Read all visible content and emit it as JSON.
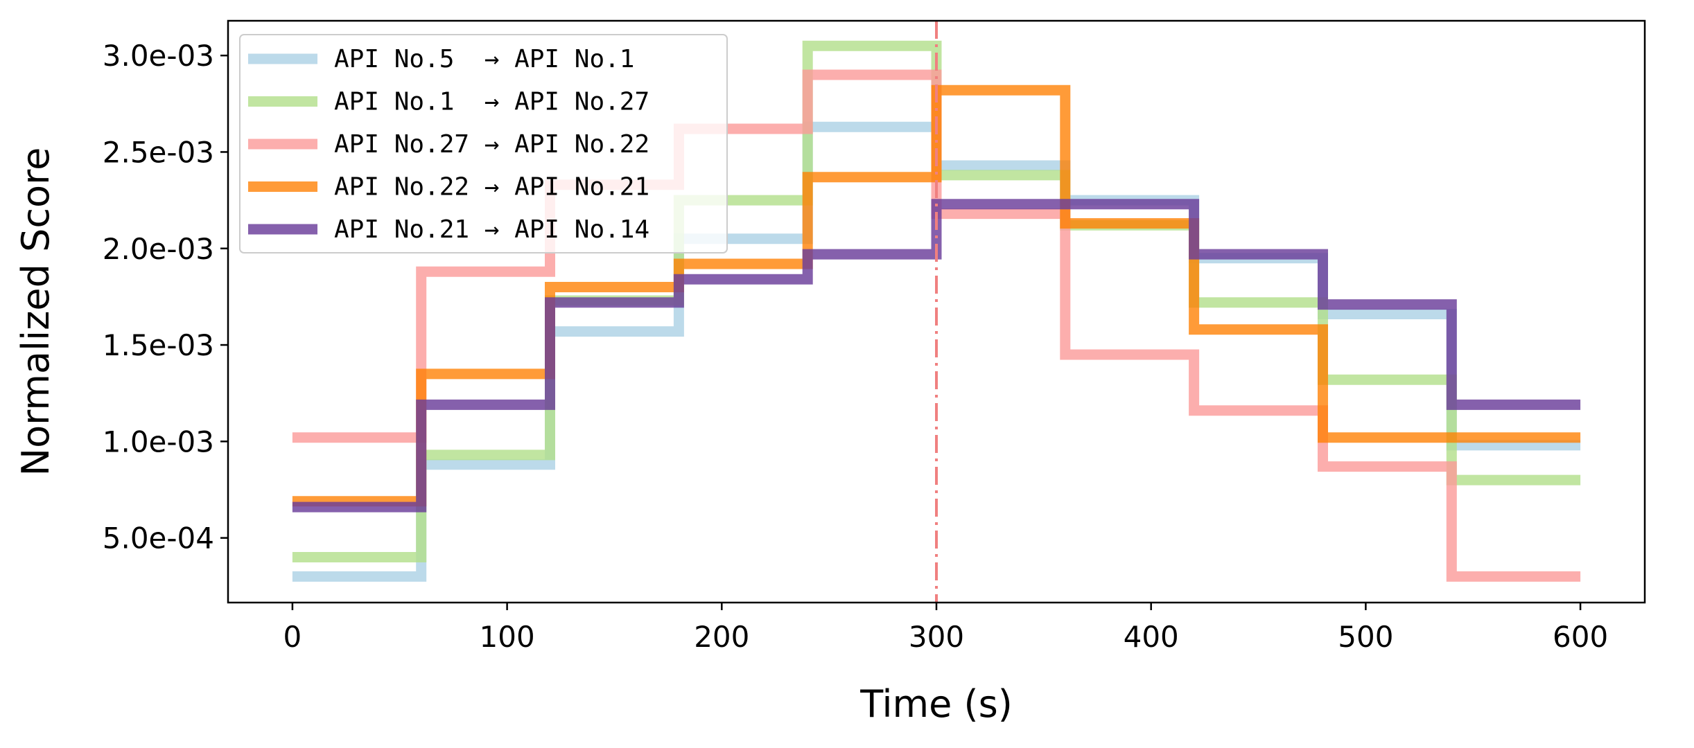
{
  "chart_data": {
    "type": "line",
    "step": "post",
    "title": "",
    "xlabel": "Time (s)",
    "ylabel": "Normalized Score",
    "xlim": [
      -30,
      630
    ],
    "ylim": [
      0.000165,
      0.00318
    ],
    "xticks": [
      0,
      100,
      200,
      300,
      400,
      500,
      600
    ],
    "xtick_labels": [
      "0",
      "100",
      "200",
      "300",
      "400",
      "500",
      "600"
    ],
    "yticks": [
      0.0005,
      0.001,
      0.0015,
      0.002,
      0.0025,
      0.003
    ],
    "ytick_labels": [
      "5.0e-04",
      "1.0e-03",
      "1.5e-03",
      "2.0e-03",
      "2.5e-03",
      "3.0e-03"
    ],
    "grid": false,
    "legend_position": "upper left",
    "x": [
      0,
      60,
      120,
      180,
      240,
      300,
      360,
      420,
      480,
      540,
      600
    ],
    "series": [
      {
        "name": "API No.5  → API No.1",
        "color": "#a6cee3",
        "opacity": 0.75,
        "values": [
          0.0003,
          0.00088,
          0.00157,
          0.00205,
          0.00263,
          0.00243,
          0.00225,
          0.00195,
          0.00166,
          0.00098,
          0.00098
        ]
      },
      {
        "name": "API No.1  → API No.27",
        "color": "#b2df8a",
        "opacity": 0.8,
        "values": [
          0.0004,
          0.00093,
          0.00173,
          0.00225,
          0.00305,
          0.00238,
          0.00212,
          0.00172,
          0.00132,
          0.0008,
          0.0008
        ]
      },
      {
        "name": "API No.27 → API No.22",
        "color": "#fb9a99",
        "opacity": 0.8,
        "values": [
          0.00102,
          0.00188,
          0.00233,
          0.00262,
          0.0029,
          0.00218,
          0.00145,
          0.00116,
          0.00087,
          0.0003,
          0.0003
        ]
      },
      {
        "name": "API No.22 → API No.21",
        "color": "#ff7f00",
        "opacity": 0.78,
        "values": [
          0.00069,
          0.00135,
          0.0018,
          0.00192,
          0.00237,
          0.00282,
          0.00213,
          0.00158,
          0.00102,
          0.00102,
          0.00102
        ]
      },
      {
        "name": "API No.21 → API No.14",
        "color": "#6a3d9a",
        "opacity": 0.82,
        "values": [
          0.00066,
          0.00119,
          0.00172,
          0.00184,
          0.00197,
          0.00223,
          0.00223,
          0.00197,
          0.00171,
          0.00119,
          0.00119
        ]
      }
    ],
    "annotations": [
      {
        "type": "vline",
        "x": 300,
        "style": "dash-dot",
        "color": "#f08080"
      }
    ]
  }
}
